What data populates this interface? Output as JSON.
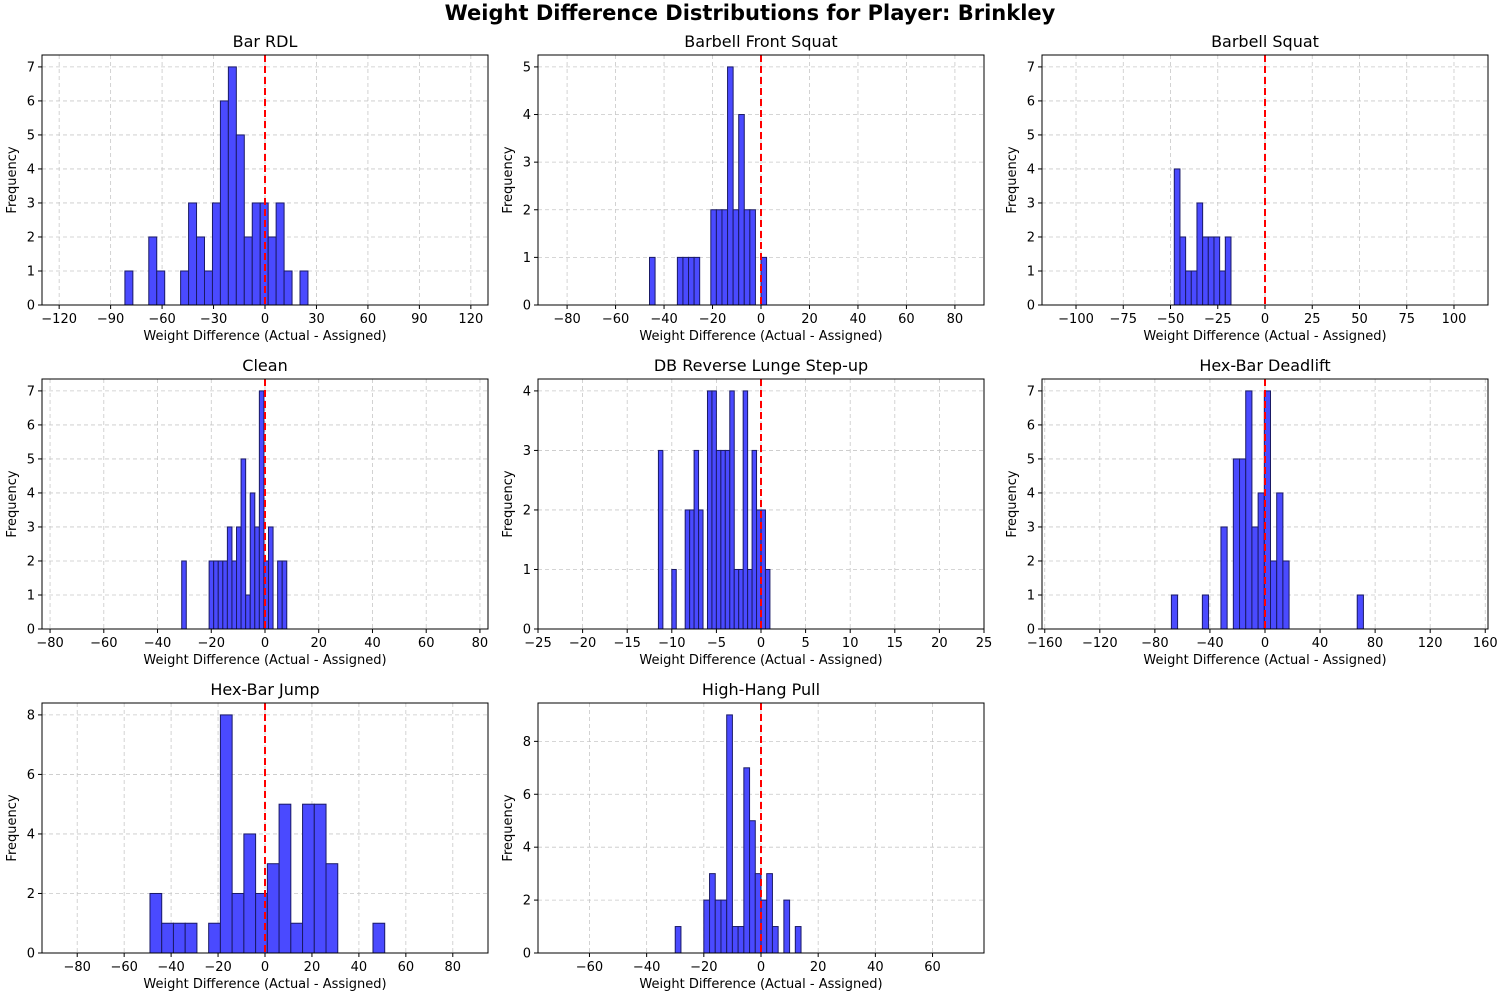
{
  "figure": {
    "title": "Weight Difference Distributions for Player: Brinkley"
  },
  "colors": {
    "bar_fill": "#4a4aff",
    "bar_edge": "#1a1a66",
    "reference_line": "#ff0000",
    "grid": "#c8c8c8"
  },
  "chart_data": [
    {
      "type": "bar",
      "title": "Bar RDL",
      "xlabel": "Weight Difference (Actual - Assigned)",
      "ylabel": "Frequency",
      "xlim": [
        -130,
        130
      ],
      "ylim": [
        0,
        7.35
      ],
      "xticks": [
        -120,
        -90,
        -60,
        -30,
        0,
        30,
        60,
        90,
        120
      ],
      "yticks": [
        0,
        1,
        2,
        3,
        4,
        5,
        6,
        7
      ],
      "reference_line_x": 0,
      "grid": true,
      "bin_edges": [
        -81.67,
        -77.03,
        -72.39,
        -67.75,
        -63.11,
        -58.47,
        -53.83,
        -49.19,
        -44.55,
        -39.91,
        -35.27,
        -30.63,
        -25.99,
        -21.35,
        -16.71,
        -12.07,
        -7.43,
        -2.79,
        1.85,
        6.49,
        11.13,
        15.77,
        20.41,
        25.05,
        29.69,
        34.33,
        38.97,
        43.61,
        48.25,
        52.89,
        57.53,
        62.17,
        66.81,
        71.45,
        76.09
      ],
      "counts": [
        1,
        0,
        0,
        2,
        1,
        0,
        0,
        1,
        3,
        2,
        1,
        3,
        6,
        7,
        5,
        2,
        3,
        3,
        2,
        3,
        1,
        0,
        1,
        0,
        0,
        0,
        0,
        0,
        0,
        0,
        0,
        0,
        0,
        0
      ]
    },
    {
      "type": "bar",
      "title": "Barbell Front Squat",
      "xlabel": "Weight Difference (Actual - Assigned)",
      "ylabel": "Frequency",
      "xlim": [
        -92,
        92
      ],
      "ylim": [
        0,
        5.25
      ],
      "xticks": [
        -80,
        -60,
        -40,
        -20,
        0,
        20,
        40,
        60,
        80
      ],
      "yticks": [
        0,
        1,
        2,
        3,
        4,
        5
      ],
      "reference_line_x": 0,
      "grid": true,
      "bin_edges": [
        -46.0,
        -43.7,
        -41.4,
        -39.1,
        -36.8,
        -34.5,
        -32.2,
        -29.9,
        -27.6,
        -25.3,
        -23.0,
        -20.7,
        -18.4,
        -16.1,
        -13.8,
        -11.5,
        -9.2,
        -6.9,
        -4.6,
        -2.3,
        0.0,
        2.3,
        4.6,
        6.9,
        9.2,
        11.5,
        13.8,
        16.1,
        18.4,
        20.7,
        23.0,
        25.3,
        27.6,
        29.9,
        32.2,
        34.5
      ],
      "counts": [
        1,
        0,
        0,
        0,
        0,
        1,
        1,
        1,
        1,
        0,
        0,
        2,
        2,
        2,
        5,
        2,
        4,
        2,
        2,
        0,
        1,
        0,
        0,
        0,
        0,
        0,
        0,
        0,
        0,
        0,
        0,
        0,
        0,
        0,
        0
      ]
    },
    {
      "type": "bar",
      "title": "Barbell Squat",
      "xlabel": "Weight Difference (Actual - Assigned)",
      "ylabel": "Frequency",
      "xlim": [
        -118,
        118
      ],
      "ylim": [
        0,
        7.35
      ],
      "xticks": [
        -100,
        -75,
        -50,
        -25,
        0,
        25,
        50,
        75,
        100
      ],
      "yticks": [
        0,
        1,
        2,
        3,
        4,
        5,
        6,
        7
      ],
      "reference_line_x": 0,
      "grid": true,
      "bin_edges": [
        -48.0,
        -45.0,
        -42.0,
        -39.0,
        -36.0,
        -33.0,
        -30.0,
        -27.0,
        -24.0,
        -21.0,
        -18.0,
        -15.0,
        -12.0,
        -9.0,
        -6.0,
        -3.0,
        0.0,
        3.0,
        6.0,
        9.0,
        12.0,
        15.0,
        18.0,
        21.0,
        24.0,
        27.0,
        30.0,
        33.0,
        36.0,
        39.0,
        42.0,
        45.0,
        48.0,
        51.0
      ],
      "counts": [
        4,
        2,
        1,
        1,
        3,
        2,
        2,
        2,
        1,
        2,
        0,
        0,
        0,
        0,
        0,
        0,
        0,
        0,
        0,
        0,
        0,
        0,
        0,
        0,
        0,
        0,
        0,
        0,
        0,
        0,
        0,
        0,
        0
      ]
    },
    {
      "type": "bar",
      "title": "Clean",
      "xlabel": "Weight Difference (Actual - Assigned)",
      "ylabel": "Frequency",
      "xlim": [
        -83,
        83
      ],
      "ylim": [
        0,
        7.35
      ],
      "xticks": [
        -80,
        -60,
        -40,
        -20,
        0,
        20,
        40,
        60,
        80
      ],
      "yticks": [
        0,
        1,
        2,
        3,
        4,
        5,
        6,
        7
      ],
      "reference_line_x": 0,
      "grid": true,
      "bin_edges": [
        -31.0,
        -29.3,
        -27.6,
        -25.9,
        -24.2,
        -22.5,
        -20.8,
        -19.1,
        -17.4,
        -15.7,
        -14.0,
        -12.3,
        -10.6,
        -8.9,
        -7.2,
        -5.5,
        -3.8,
        -2.1,
        -0.4,
        1.3,
        3.0,
        4.7,
        6.4,
        8.1,
        9.8,
        11.5,
        13.2,
        14.9,
        16.6,
        18.3,
        20.0,
        21.7,
        23.4,
        25.1,
        26.8
      ],
      "counts": [
        2,
        0,
        0,
        0,
        0,
        0,
        2,
        2,
        2,
        2,
        3,
        2,
        3,
        5,
        1,
        4,
        3,
        7,
        2,
        3,
        0,
        2,
        2,
        0,
        0,
        0,
        0,
        0,
        0,
        0,
        0,
        0,
        0,
        0
      ]
    },
    {
      "type": "bar",
      "title": "DB Reverse Lunge Step-up",
      "xlabel": "Weight Difference (Actual - Assigned)",
      "ylabel": "Frequency",
      "xlim": [
        -25,
        25
      ],
      "ylim": [
        0,
        4.2
      ],
      "xticks": [
        -25,
        -20,
        -15,
        -10,
        -5,
        0,
        5,
        10,
        15,
        20,
        25
      ],
      "yticks": [
        0,
        1,
        2,
        3,
        4
      ],
      "reference_line_x": 0,
      "grid": true,
      "bin_edges": [
        -11.5,
        -11.0,
        -10.5,
        -10.0,
        -9.5,
        -9.0,
        -8.5,
        -8.0,
        -7.5,
        -7.0,
        -6.5,
        -6.0,
        -5.5,
        -5.0,
        -4.5,
        -4.0,
        -3.5,
        -3.0,
        -2.5,
        -2.0,
        -1.5,
        -1.0,
        -0.5,
        0.0,
        0.5,
        1.0,
        1.5,
        2.0,
        2.5,
        3.0,
        3.5,
        4.0,
        4.5,
        5.0,
        5.5,
        6.0,
        6.5,
        7.0,
        7.5
      ],
      "counts": [
        3,
        0,
        0,
        1,
        0,
        0,
        2,
        2,
        3,
        2,
        0,
        4,
        4,
        3,
        3,
        3,
        4,
        1,
        1,
        4,
        1,
        3,
        2,
        2,
        1,
        0,
        0,
        0,
        0,
        0,
        0,
        0,
        0,
        0,
        0,
        0,
        0,
        0
      ]
    },
    {
      "type": "bar",
      "title": "Hex-Bar Deadlift",
      "xlabel": "Weight Difference (Actual - Assigned)",
      "ylabel": "Frequency",
      "xlim": [
        -162,
        162
      ],
      "ylim": [
        0,
        7.35
      ],
      "xticks": [
        -160,
        -120,
        -80,
        -40,
        0,
        40,
        80,
        120,
        160
      ],
      "yticks": [
        0,
        1,
        2,
        3,
        4,
        5,
        6,
        7
      ],
      "reference_line_x": 0,
      "grid": true,
      "bin_edges": [
        -68.0,
        -63.5,
        -59.0,
        -54.5,
        -50.0,
        -45.5,
        -41.0,
        -36.5,
        -32.0,
        -27.5,
        -23.0,
        -18.5,
        -14.0,
        -9.5,
        -5.0,
        -0.5,
        4.0,
        8.5,
        13.0,
        17.5,
        22.0,
        26.5,
        31.0,
        35.5,
        40.0,
        44.5,
        49.0,
        53.5,
        58.0,
        62.5,
        67.0,
        71.5,
        76.0,
        80.5
      ],
      "counts": [
        1,
        0,
        0,
        0,
        0,
        1,
        0,
        0,
        3,
        0,
        5,
        5,
        7,
        3,
        4,
        7,
        2,
        4,
        2,
        0,
        0,
        0,
        0,
        0,
        0,
        0,
        0,
        0,
        0,
        0,
        1,
        0,
        0
      ]
    },
    {
      "type": "bar",
      "title": "Hex-Bar Jump",
      "xlabel": "Weight Difference (Actual - Assigned)",
      "ylabel": "Frequency",
      "xlim": [
        -95,
        95
      ],
      "ylim": [
        0,
        8.4
      ],
      "xticks": [
        -80,
        -60,
        -40,
        -20,
        0,
        20,
        40,
        60,
        80
      ],
      "yticks": [
        0,
        2,
        4,
        6,
        8
      ],
      "reference_line_x": 0,
      "grid": true,
      "bin_edges": [
        -49.0,
        -44.0,
        -39.0,
        -34.0,
        -29.0,
        -24.0,
        -19.0,
        -14.0,
        -9.0,
        -4.0,
        1.0,
        6.0,
        11.0,
        16.0,
        21.0,
        26.0,
        31.0,
        36.0,
        41.0,
        46.0,
        51.0
      ],
      "counts": [
        2,
        1,
        1,
        1,
        0,
        1,
        8,
        2,
        4,
        2,
        3,
        5,
        1,
        5,
        5,
        3,
        0,
        0,
        0,
        1
      ]
    },
    {
      "type": "bar",
      "title": "High-Hang Pull",
      "xlabel": "Weight Difference (Actual - Assigned)",
      "ylabel": "Frequency",
      "xlim": [
        -78,
        78
      ],
      "ylim": [
        0,
        9.45
      ],
      "xticks": [
        -60,
        -40,
        -20,
        0,
        20,
        40,
        60
      ],
      "yticks": [
        0,
        2,
        4,
        6,
        8
      ],
      "reference_line_x": 0,
      "grid": true,
      "bin_edges": [
        -30.0,
        -28.0,
        -26.0,
        -24.0,
        -22.0,
        -20.0,
        -18.0,
        -16.0,
        -14.0,
        -12.0,
        -10.0,
        -8.0,
        -6.0,
        -4.0,
        -2.0,
        0.0,
        2.0,
        4.0,
        6.0,
        8.0,
        10.0,
        12.0,
        14.0,
        16.0,
        18.0,
        20.0,
        22.0,
        24.0,
        26.0,
        28.0,
        30.0,
        32.0
      ],
      "counts": [
        1,
        0,
        0,
        0,
        0,
        2,
        3,
        2,
        2,
        9,
        1,
        1,
        7,
        5,
        3,
        2,
        3,
        1,
        0,
        2,
        0,
        1,
        0,
        0,
        0,
        0,
        0,
        0,
        0,
        0,
        0
      ]
    }
  ]
}
